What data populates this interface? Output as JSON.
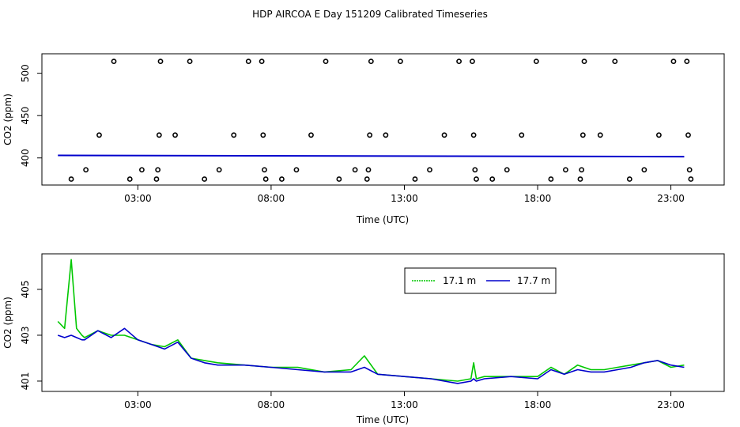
{
  "title": "HDP AIRCOA E  Day 151209  Calibrated Timeseries",
  "colors": {
    "series_green": "#00c800",
    "series_blue": "#0000cc",
    "points": "#000000"
  },
  "chart_data": [
    {
      "type": "scatter",
      "xlabel": "Time (UTC)",
      "ylabel": "CO2 (ppm)",
      "x_ticks": [
        3,
        8,
        13,
        18,
        23
      ],
      "x_tick_labels": [
        "03:00",
        "08:00",
        "13:00",
        "18:00",
        "23:00"
      ],
      "xlim": [
        -0.6,
        25.0
      ],
      "y_ticks": [
        400,
        450,
        500
      ],
      "y_tick_labels": [
        "400",
        "450",
        "500"
      ],
      "ylim": [
        368,
        523
      ],
      "grid": false,
      "points": [
        [
          0.5,
          375
        ],
        [
          1.05,
          386
        ],
        [
          1.55,
          427
        ],
        [
          2.1,
          514
        ],
        [
          2.7,
          375
        ],
        [
          3.15,
          386
        ],
        [
          3.7,
          375
        ],
        [
          3.75,
          386
        ],
        [
          3.8,
          427
        ],
        [
          3.85,
          514
        ],
        [
          4.4,
          427
        ],
        [
          4.95,
          514
        ],
        [
          5.5,
          375
        ],
        [
          6.05,
          386
        ],
        [
          6.6,
          427
        ],
        [
          7.15,
          514
        ],
        [
          7.65,
          514
        ],
        [
          7.7,
          427
        ],
        [
          7.75,
          386
        ],
        [
          7.8,
          375
        ],
        [
          8.4,
          375
        ],
        [
          8.95,
          386
        ],
        [
          9.5,
          427
        ],
        [
          10.05,
          514
        ],
        [
          10.55,
          375
        ],
        [
          11.15,
          386
        ],
        [
          11.6,
          375
        ],
        [
          11.65,
          386
        ],
        [
          11.7,
          427
        ],
        [
          11.75,
          514
        ],
        [
          12.3,
          427
        ],
        [
          12.85,
          514
        ],
        [
          13.4,
          375
        ],
        [
          13.95,
          386
        ],
        [
          14.5,
          427
        ],
        [
          15.05,
          514
        ],
        [
          15.55,
          514
        ],
        [
          15.6,
          427
        ],
        [
          15.65,
          386
        ],
        [
          15.7,
          375
        ],
        [
          16.3,
          375
        ],
        [
          16.85,
          386
        ],
        [
          17.4,
          427
        ],
        [
          17.95,
          514
        ],
        [
          18.5,
          375
        ],
        [
          19.05,
          386
        ],
        [
          19.6,
          375
        ],
        [
          19.65,
          386
        ],
        [
          19.7,
          427
        ],
        [
          19.75,
          514
        ],
        [
          20.35,
          427
        ],
        [
          20.9,
          514
        ],
        [
          21.45,
          375
        ],
        [
          22.0,
          386
        ],
        [
          22.55,
          427
        ],
        [
          23.1,
          514
        ],
        [
          23.6,
          514
        ],
        [
          23.65,
          427
        ],
        [
          23.7,
          386
        ],
        [
          23.75,
          375
        ]
      ],
      "line": {
        "x_start": 0.0,
        "x_end": 23.5,
        "y_start": 403,
        "y_end": 401.5
      }
    },
    {
      "type": "line",
      "xlabel": "Time (UTC)",
      "ylabel": "CO2 (ppm)",
      "x_ticks": [
        3,
        8,
        13,
        18,
        23
      ],
      "x_tick_labels": [
        "03:00",
        "08:00",
        "13:00",
        "18:00",
        "23:00"
      ],
      "xlim": [
        -0.6,
        25.0
      ],
      "y_ticks": [
        401,
        403,
        405
      ],
      "y_tick_labels": [
        "401",
        "403",
        "405"
      ],
      "ylim": [
        400.55,
        406.55
      ],
      "grid": false,
      "legend": "top-center",
      "x": [
        0.0,
        0.25,
        0.5,
        0.7,
        0.9,
        1.0,
        1.5,
        2.0,
        2.5,
        3.0,
        3.5,
        4.0,
        4.5,
        5.0,
        5.5,
        6.0,
        7.0,
        8.0,
        9.0,
        10.0,
        11.0,
        11.5,
        12.0,
        13.0,
        14.0,
        15.0,
        15.5,
        15.6,
        15.7,
        16.0,
        17.0,
        18.0,
        18.5,
        19.0,
        19.5,
        20.0,
        20.5,
        21.0,
        21.5,
        22.0,
        22.5,
        23.0,
        23.5
      ],
      "series": [
        {
          "name": "17.1 m",
          "color": "#00c800",
          "values": [
            403.6,
            403.3,
            406.3,
            403.3,
            403.0,
            402.9,
            403.2,
            403.0,
            403.0,
            402.8,
            402.6,
            402.5,
            402.8,
            402.0,
            401.9,
            401.8,
            401.7,
            401.6,
            401.6,
            401.4,
            401.5,
            402.1,
            401.3,
            401.2,
            401.1,
            401.0,
            401.1,
            401.8,
            401.1,
            401.2,
            401.2,
            401.2,
            401.6,
            401.3,
            401.7,
            401.5,
            401.5,
            401.6,
            401.7,
            401.8,
            401.9,
            401.6,
            401.7
          ]
        },
        {
          "name": "17.7 m",
          "color": "#0000cc",
          "values": [
            403.0,
            402.9,
            403.0,
            402.9,
            402.8,
            402.8,
            403.2,
            402.9,
            403.3,
            402.8,
            402.6,
            402.4,
            402.7,
            402.0,
            401.8,
            401.7,
            401.7,
            401.6,
            401.5,
            401.4,
            401.4,
            401.6,
            401.3,
            401.2,
            401.1,
            400.9,
            401.0,
            401.1,
            401.0,
            401.1,
            401.2,
            401.1,
            401.5,
            401.3,
            401.5,
            401.4,
            401.4,
            401.5,
            401.6,
            401.8,
            401.9,
            401.7,
            401.6
          ]
        }
      ]
    }
  ]
}
